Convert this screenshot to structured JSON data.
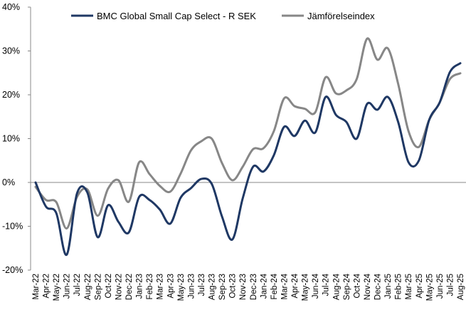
{
  "chart_data": {
    "type": "line",
    "title": "",
    "xlabel": "",
    "ylabel": "",
    "ylim": [
      -20,
      40
    ],
    "yticks": [
      "40%",
      "30%",
      "20%",
      "10%",
      "0%",
      "-10%",
      "-20%"
    ],
    "ytick_values": [
      40,
      30,
      20,
      10,
      0,
      -10,
      -20
    ],
    "legend_position": "top",
    "categories": [
      "Mar-22",
      "Apr-22",
      "May-22",
      "Jun-22",
      "Jul-22",
      "Aug-22",
      "Sep-22",
      "Oct-22",
      "Nov-22",
      "Dec-22",
      "Jan-23",
      "Feb-23",
      "Mar-23",
      "Apr-23",
      "May-23",
      "Jun-23",
      "Jul-23",
      "Aug-23",
      "Sep-23",
      "Oct-23",
      "Nov-23",
      "Dec-23",
      "Jan-24",
      "Feb-24",
      "Mar-24",
      "Apr-24",
      "May-24",
      "Jun-24",
      "Jul-24",
      "Aug-24",
      "Sep-24",
      "Oct-24",
      "Nov-24",
      "Dec-24",
      "Jan-25",
      "Feb-25",
      "Mar-25",
      "Apr-25",
      "May-25",
      "Jun-25",
      "Jul-25",
      "Aug-25"
    ],
    "series": [
      {
        "name": "BMC Global Small Cap Select - R SEK",
        "color": "#1f3864",
        "values": [
          0,
          -5.5,
          -7,
          -16.5,
          -2.5,
          -2.3,
          -12.5,
          -5.2,
          -9,
          -11.4,
          -3.3,
          -4,
          -6.2,
          -9.4,
          -3.5,
          -1.3,
          0.8,
          -0.3,
          -7.8,
          -13,
          -3.6,
          3.6,
          2.5,
          6.2,
          12.7,
          10.6,
          14.1,
          11.4,
          19.5,
          15.4,
          13.8,
          10,
          17.9,
          16.6,
          19.5,
          13.8,
          4.6,
          5,
          14.3,
          18.2,
          25.2,
          27.2
        ]
      },
      {
        "name": "Jämförelseindex",
        "color": "#878787",
        "values": [
          -1,
          -4,
          -4.5,
          -10.5,
          -3.3,
          -1.6,
          -7.6,
          -1.4,
          0.5,
          -4.4,
          4.6,
          1.9,
          -0.8,
          -2.1,
          2,
          7.3,
          9.4,
          10,
          4.4,
          0.5,
          3.6,
          7.6,
          7.8,
          11.7,
          19.2,
          17.4,
          16.8,
          16,
          24,
          20.3,
          21,
          23.6,
          32.8,
          28,
          30.6,
          22.5,
          11.7,
          8.1,
          14.3,
          18.2,
          23.6,
          24.9
        ]
      }
    ]
  }
}
